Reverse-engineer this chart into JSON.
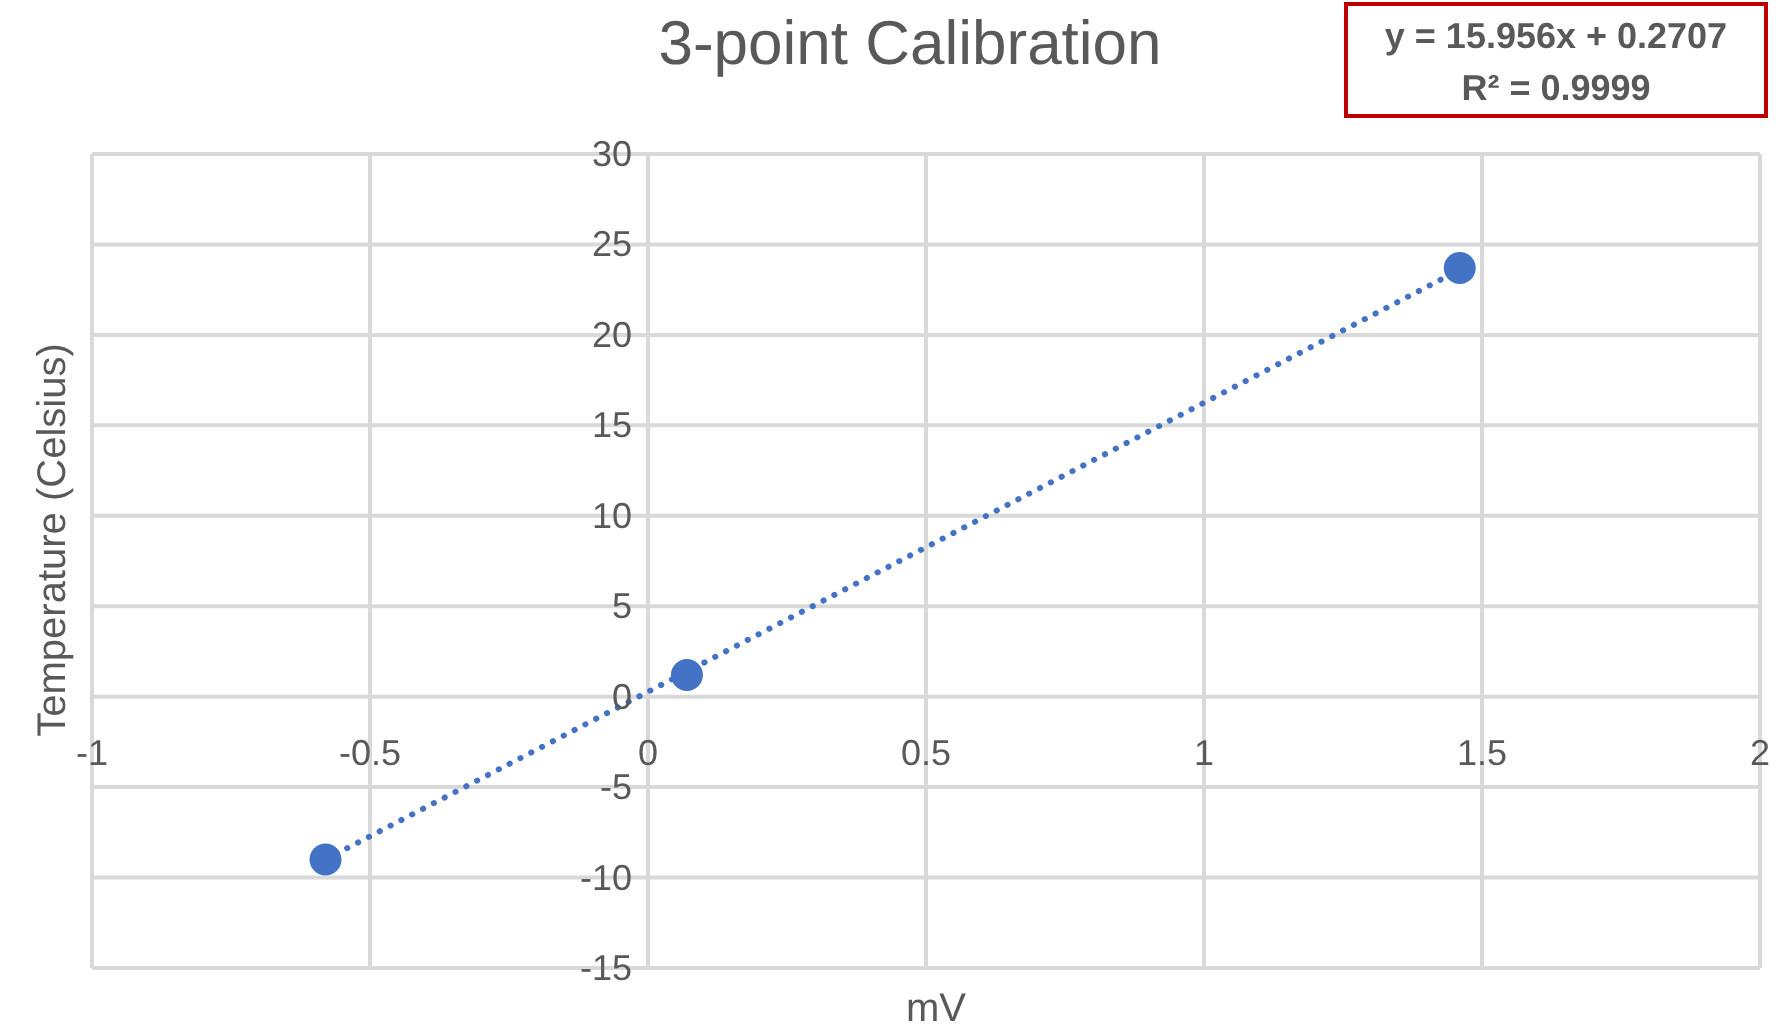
{
  "chart_data": {
    "type": "scatter",
    "title": "3-point Calibration",
    "xlabel": "mV",
    "ylabel": "Temperature (Celsius)",
    "annotations": [
      "y = 15.956x + 0.2707",
      "R² = 0.9999"
    ],
    "xlim": [
      -1,
      2
    ],
    "xticks": [
      -1,
      -0.5,
      0,
      0.5,
      1,
      1.5,
      2
    ],
    "ylim": [
      -15,
      30
    ],
    "yticks": [
      -15,
      -10,
      -5,
      0,
      5,
      10,
      15,
      20,
      25,
      30
    ],
    "grid": true,
    "marker": "circle",
    "series": [
      {
        "type": "scatter",
        "color": "#4472c4",
        "x": [
          -0.58,
          0.07,
          1.46
        ],
        "values": [
          -9.0,
          1.2,
          23.7
        ]
      },
      {
        "type": "line",
        "color": "#4472c4",
        "line_style": "dotted",
        "marker": "none",
        "x": [
          -0.58,
          1.46
        ],
        "values": [
          -9.0,
          23.6
        ]
      }
    ]
  }
}
